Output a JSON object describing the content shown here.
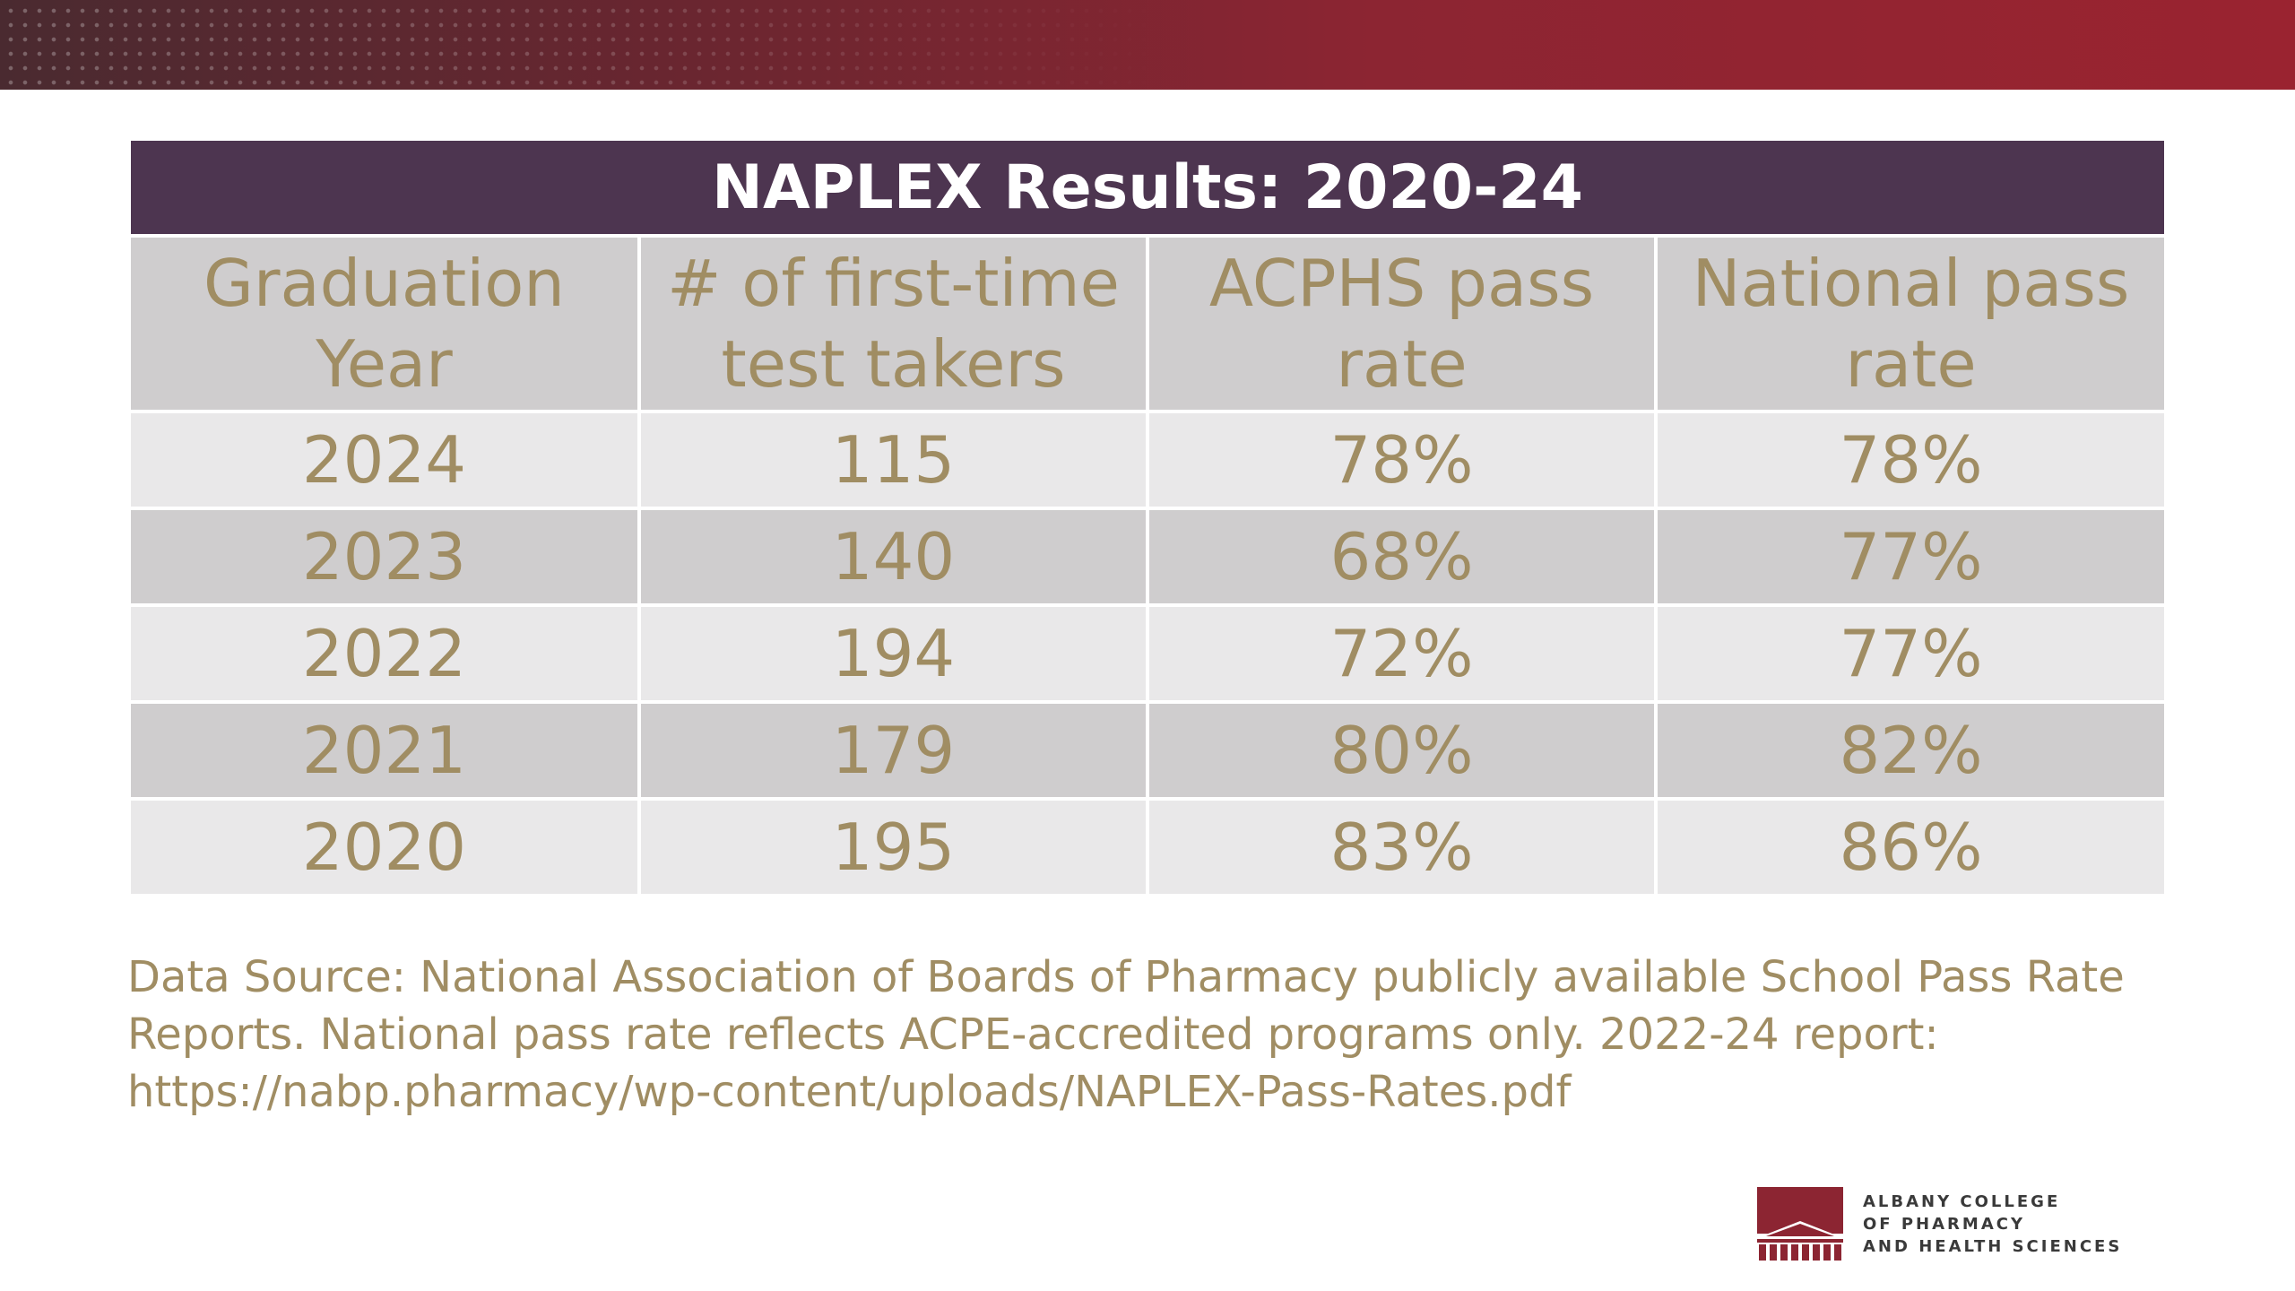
{
  "table": {
    "title": "NAPLEX Results: 2020-24",
    "headers": [
      [
        "Graduation",
        "Year"
      ],
      [
        "# of first-time",
        "test takers"
      ],
      [
        "ACPHS pass",
        "rate"
      ],
      [
        "National pass",
        "rate"
      ]
    ],
    "rows": [
      [
        "2024",
        "115",
        "78%",
        "78%"
      ],
      [
        "2023",
        "140",
        "68%",
        "77%"
      ],
      [
        "2022",
        "194",
        "72%",
        "77%"
      ],
      [
        "2021",
        "179",
        "80%",
        "82%"
      ],
      [
        "2020",
        "195",
        "83%",
        "86%"
      ]
    ]
  },
  "footnote": {
    "lines": [
      "Data Source: National Association of Boards of Pharmacy publicly available School Pass Rate",
      "Reports. National pass rate reflects ACPE-accredited programs only. 2022-24 report:",
      "https://nabp.pharmacy/wp-content/uploads/NAPLEX-Pass-Rates.pdf"
    ]
  },
  "logo": {
    "lines": [
      "ALBANY COLLEGE",
      "OF PHARMACY",
      "AND HEALTH SCIENCES"
    ],
    "icon": "college-building-logo-icon"
  },
  "colors": {
    "title_bar": "#4d3550",
    "header_bg": "#cfcdce",
    "row_light": "#e9e8e9",
    "row_dark": "#cfcdce",
    "text_gold": "#a08d63",
    "brand_maroon": "#8c2532"
  }
}
